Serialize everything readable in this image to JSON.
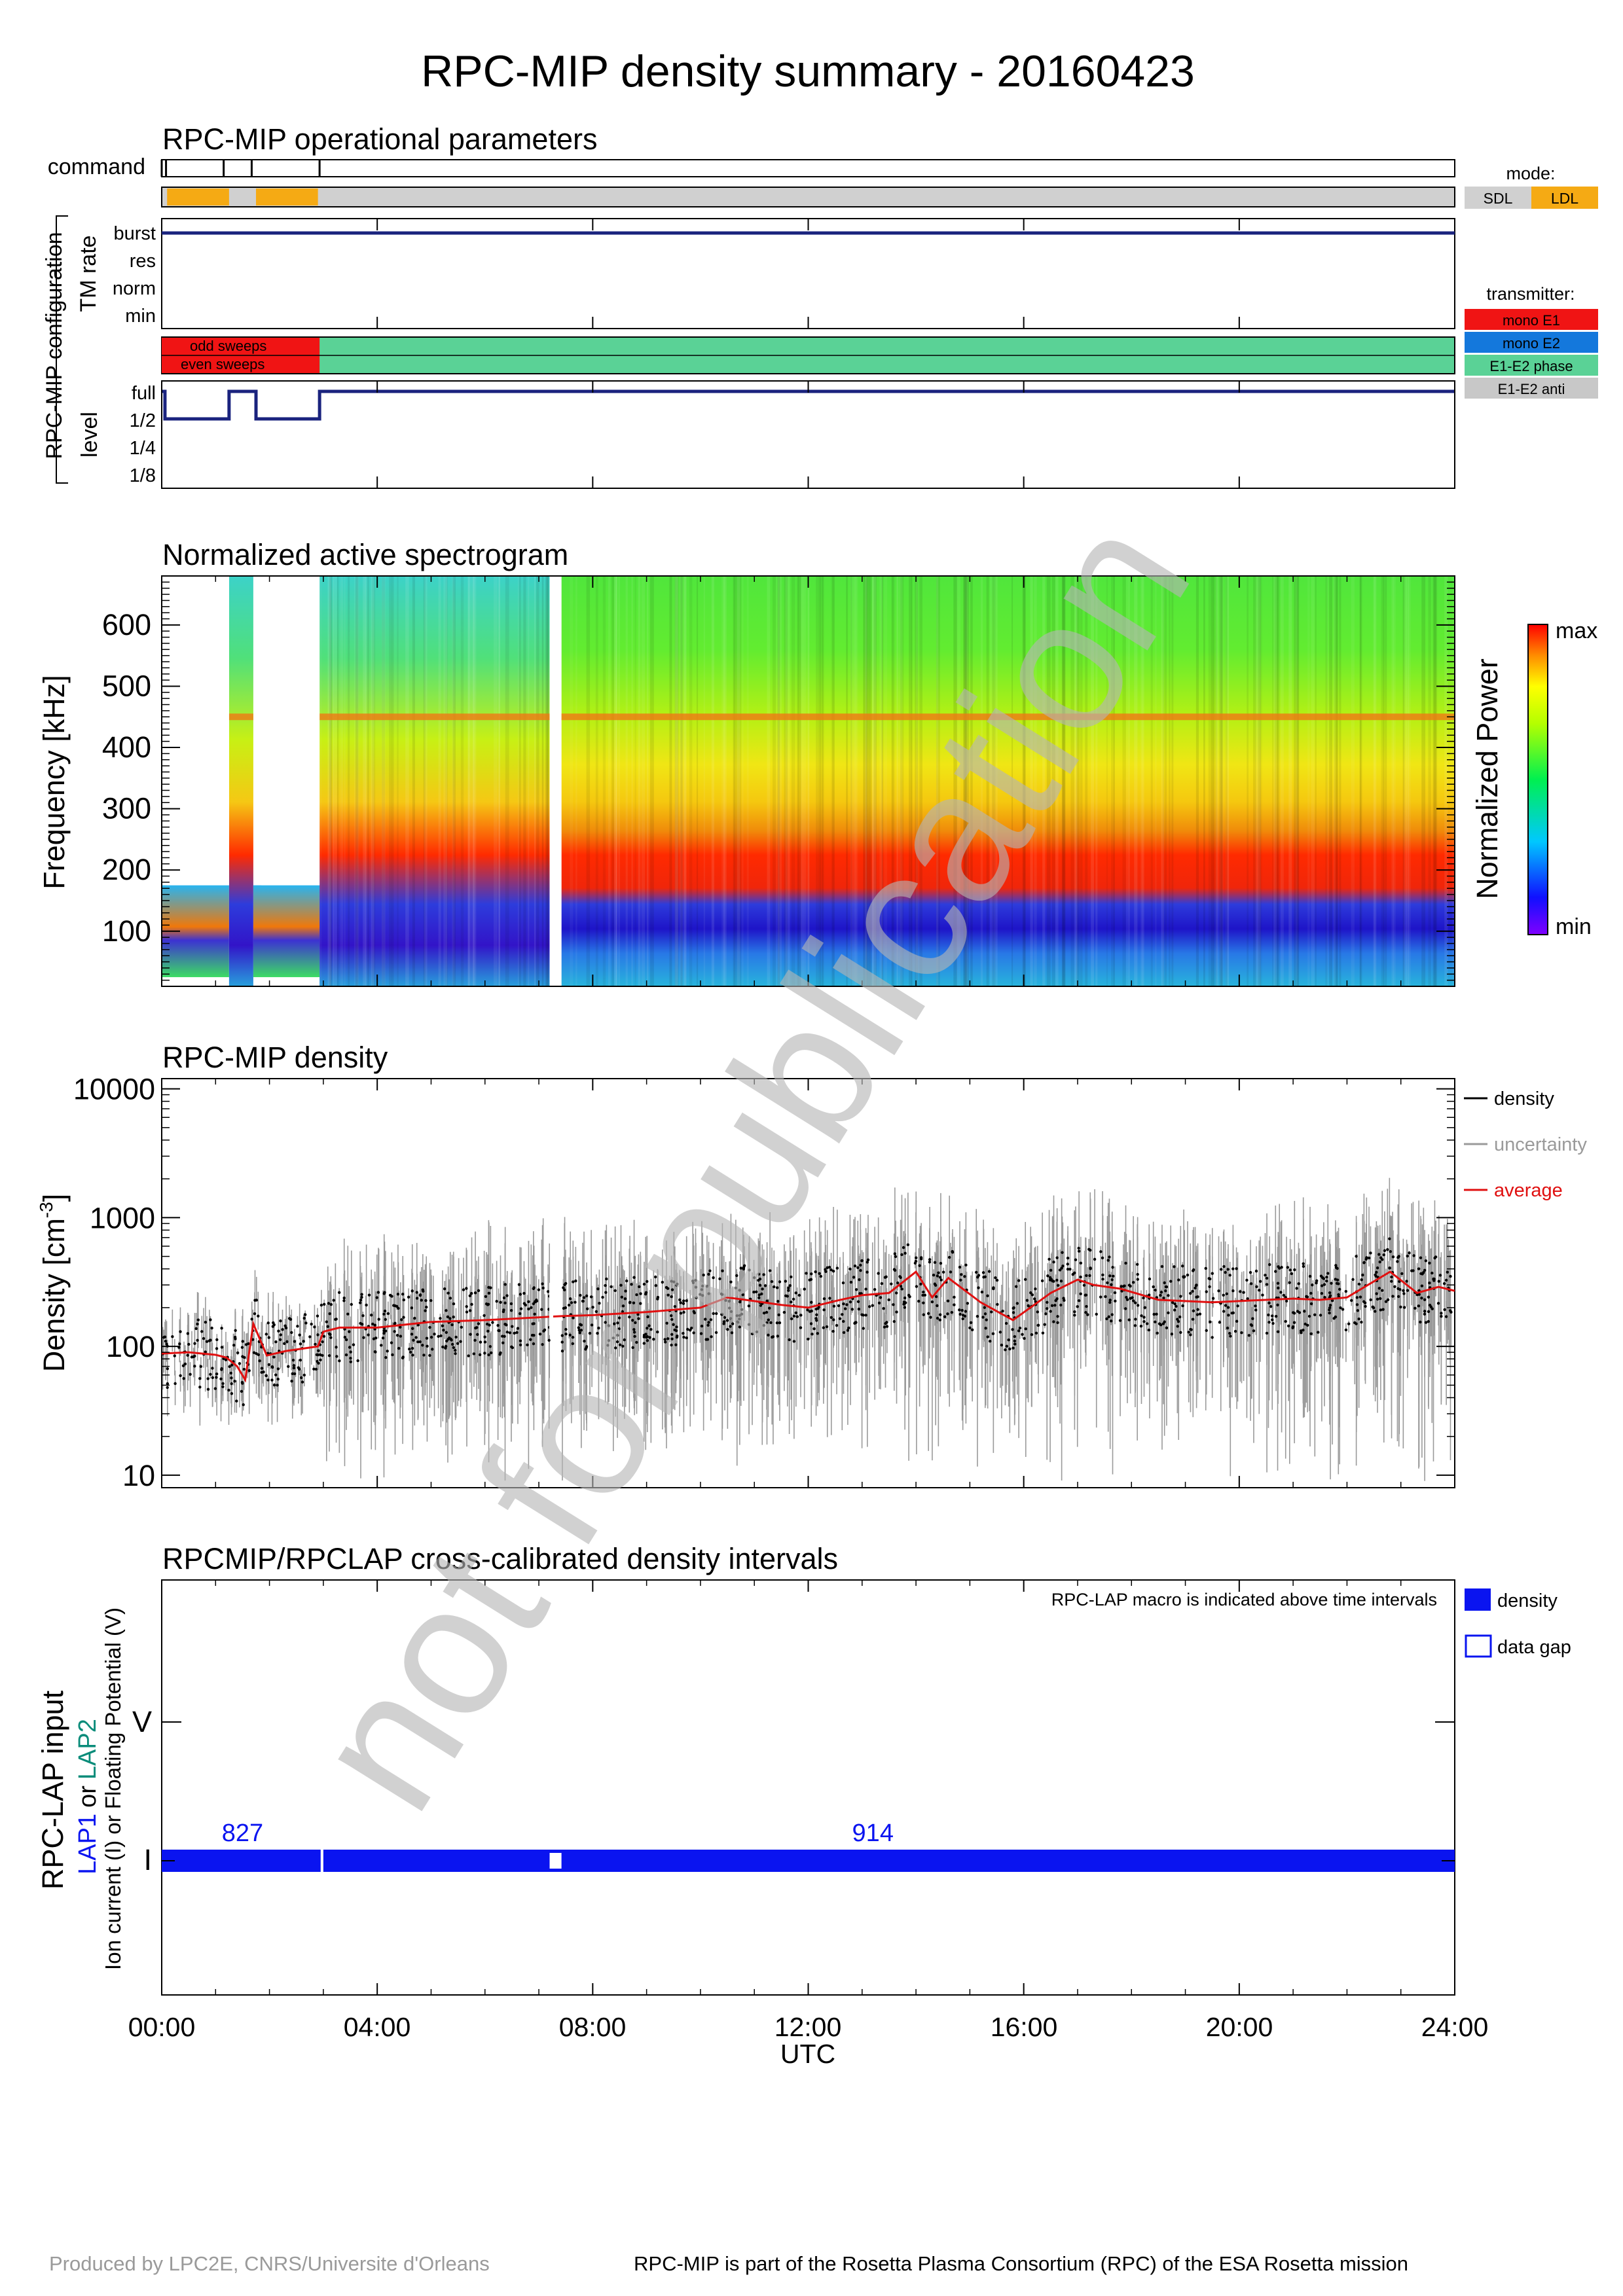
{
  "title": "RPC-MIP density summary - 20160423",
  "colors": {
    "mode_sdl": "#d0d0d0",
    "mode_ldl": "#f5aa14",
    "mono_e1": "#f01414",
    "mono_e2": "#1478dc",
    "e1e2_phase": "#5ad296",
    "e1e2_anti": "#c8c8c8",
    "navy": "#1a237e",
    "lap_blue": "#0a14f0",
    "lap2_teal": "#0a8c7a",
    "average_red": "#e01010",
    "uncertainty_grey": "#9a9a9a"
  },
  "panel_ops": {
    "title": "RPC-MIP operational parameters",
    "command_label": "command",
    "command_times_h": [
      0.0,
      0.08,
      1.15,
      1.67,
      2.93
    ],
    "mode_legend_title": "mode:",
    "mode_legend": [
      "SDL",
      "LDL"
    ],
    "mode_ldl_intervals_h": [
      [
        0.1,
        1.25
      ],
      [
        1.75,
        2.9
      ]
    ],
    "config_label": "RPC-MIP configuration",
    "tm_label": "TM rate",
    "tm_levels": [
      "burst",
      "res",
      "norm",
      "min"
    ],
    "tm_value": "burst",
    "transmitter_legend_title": "transmitter:",
    "transmitter_legend": [
      "mono E1",
      "mono E2",
      "E1-E2 phase",
      "E1-E2 anti"
    ],
    "sweep_labels": [
      "odd sweeps",
      "even sweeps"
    ],
    "transmitter_mono_e1_interval_h": [
      0.0,
      2.93
    ],
    "level_label": "level",
    "level_ticks": [
      "full",
      "1/2",
      "1/4",
      "1/8"
    ],
    "level_steps": [
      [
        0.0,
        "full"
      ],
      [
        0.06,
        "1/2"
      ],
      [
        1.25,
        "full"
      ],
      [
        1.75,
        "1/2"
      ],
      [
        2.93,
        "full"
      ],
      [
        24.0,
        "full"
      ]
    ]
  },
  "chart_data": [
    {
      "type": "heatmap",
      "title": "Normalized active spectrogram",
      "xlabel": "UTC",
      "ylabel": "Frequency [kHz]",
      "ylim": [
        10,
        680
      ],
      "xlim": [
        0,
        24
      ],
      "yticks": [
        100,
        200,
        300,
        400,
        500,
        600
      ],
      "colorbar_label": "Normalized Power",
      "colorbar_ticks": [
        "max",
        "min"
      ],
      "data_gaps_h": [
        [
          0.06,
          1.25
        ],
        [
          1.85,
          2.93
        ],
        [
          7.2,
          7.42
        ]
      ],
      "lower_band_kHz": [
        70,
        100
      ],
      "red_band_kHz": [
        150,
        230
      ],
      "line_kHz": 450
    },
    {
      "type": "scatter",
      "title": "RPC-MIP density",
      "xlabel": "UTC",
      "ylabel": "Density [cm",
      "ylabel_sup": "-3",
      "ylabel_end": "]",
      "ylim": [
        8,
        12000
      ],
      "yscale": "log",
      "yticks": [
        "10000",
        "1000",
        "100",
        "10"
      ],
      "legend": [
        "density",
        "uncertainty",
        "average"
      ],
      "average_series": {
        "name": "average",
        "x": [
          0.0,
          0.5,
          1.0,
          1.2,
          1.4,
          1.55,
          1.7,
          1.95,
          2.3,
          2.9,
          3.0,
          3.3,
          4.0,
          5.0,
          6.0,
          7.0,
          7.2,
          7.45,
          8.0,
          9.0,
          10.0,
          10.5,
          11.0,
          11.5,
          12.0,
          12.6,
          13.0,
          13.5,
          14.0,
          14.3,
          14.6,
          15.2,
          15.8,
          16.5,
          17.0,
          17.3,
          17.8,
          18.5,
          19.5,
          20.5,
          21.0,
          21.5,
          22.0,
          22.8,
          23.3,
          23.7,
          24.0
        ],
        "y": [
          88,
          90,
          86,
          82,
          70,
          55,
          150,
          85,
          92,
          100,
          130,
          140,
          140,
          155,
          160,
          168,
          170,
          172,
          175,
          185,
          200,
          240,
          225,
          210,
          200,
          230,
          250,
          260,
          380,
          240,
          340,
          220,
          160,
          260,
          330,
          300,
          280,
          230,
          220,
          230,
          235,
          230,
          240,
          380,
          260,
          290,
          270
        ]
      }
    },
    {
      "type": "bar",
      "title": "RPCMIP/RPCLAP cross-calibrated density intervals",
      "xlabel": "UTC",
      "note": "RPC-LAP macro is indicated above time intervals",
      "ylabel_main": "RPC-LAP input",
      "ylabel_lap1": "LAP1",
      "ylabel_or": "or",
      "ylabel_lap2": "LAP2",
      "ylabel_sub": "Ion current (I) or Floating Potential (V)",
      "categories": [
        "V",
        "I"
      ],
      "legend": [
        "density",
        "data gap"
      ],
      "intervals": [
        {
          "input": "I",
          "start_h": 0.0,
          "end_h": 2.95,
          "macro": "827"
        },
        {
          "input": "I",
          "start_h": 3.0,
          "end_h": 24.0,
          "macro": "914"
        }
      ],
      "data_gaps_h": [
        [
          7.2,
          7.42
        ]
      ]
    }
  ],
  "x_axis": {
    "ticks": [
      "00:00",
      "04:00",
      "08:00",
      "12:00",
      "16:00",
      "20:00",
      "24:00"
    ],
    "label": "UTC"
  },
  "watermark": "not for publication",
  "footer": {
    "left": "Produced by LPC2E, CNRS/Universite d'Orleans",
    "right": "RPC-MIP is part of the Rosetta Plasma Consortium (RPC) of the ESA Rosetta mission"
  }
}
